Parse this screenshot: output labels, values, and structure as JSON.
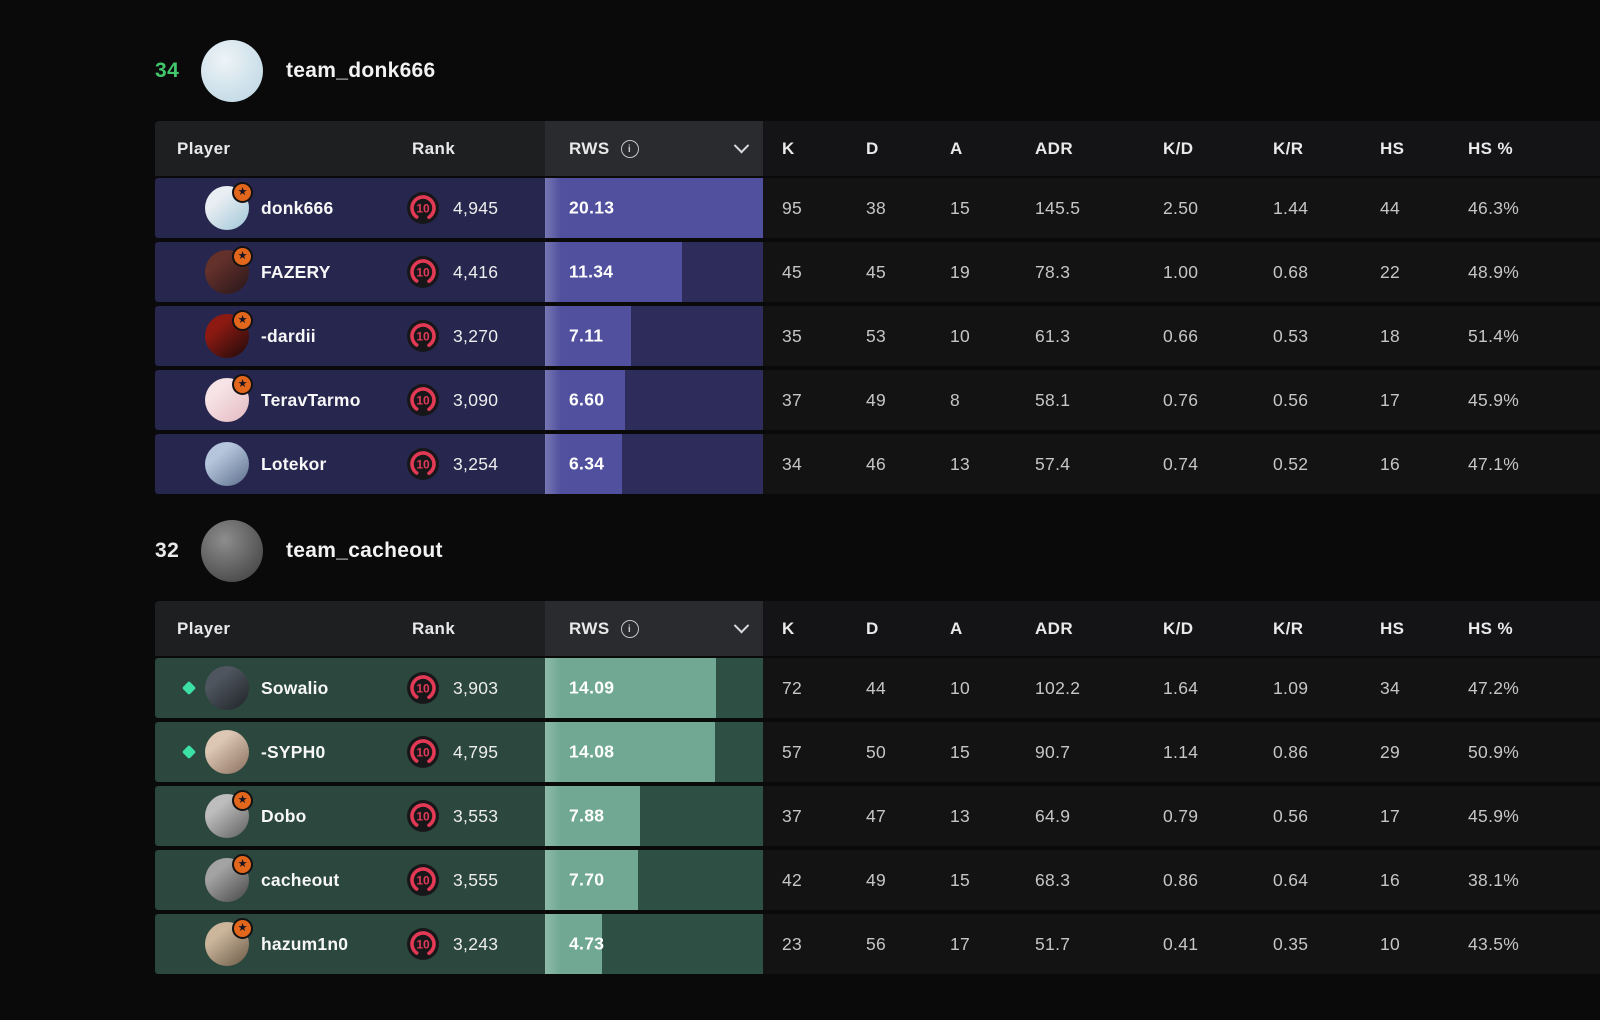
{
  "rws_scale_max": 18,
  "columns": {
    "player": "Player",
    "rank": "Rank",
    "rws": "RWS",
    "rws_info_icon": "info-icon",
    "rws_sort_icon": "chevron-down-icon",
    "stats": [
      "K",
      "D",
      "A",
      "ADR",
      "K/D",
      "K/R",
      "HS",
      "HS %"
    ]
  },
  "theme": {
    "page_bg": "#0a0a0b",
    "header_left_bg": "#1e1f21",
    "header_rws_bg": "#2a2b2e",
    "header_right_bg": "#141416",
    "stat_cell_bg": "#131314",
    "rank_accent": "#e23a55",
    "star_badge_color": "#e2661c",
    "diamond_color": "#3ce0a4",
    "winner_score_color": "#42c76d"
  },
  "teams": [
    {
      "score": "34",
      "score_color": "#42c76d",
      "name": "team_donk666",
      "avatar": {
        "c1": "#eef4f7",
        "c2": "#b9d4e2"
      },
      "colors": {
        "row_bg": "#27264e",
        "rws_rest_bg": "#2d2c5a",
        "rws_bar": "#50509e"
      },
      "players": [
        {
          "name": "donk666",
          "diamond": false,
          "star": true,
          "rank_level": "10",
          "rank_rating": "4,945",
          "rws": "20.13",
          "stats": [
            "95",
            "38",
            "15",
            "145.5",
            "2.50",
            "1.44",
            "44",
            "46.3%"
          ],
          "avatar": {
            "c1": "#e9eef2",
            "c2": "#9fc6d8"
          }
        },
        {
          "name": "FAZERY",
          "diamond": false,
          "star": true,
          "rank_level": "10",
          "rank_rating": "4,416",
          "rws": "11.34",
          "stats": [
            "45",
            "45",
            "19",
            "78.3",
            "1.00",
            "0.68",
            "22",
            "48.9%"
          ],
          "avatar": {
            "c1": "#63302a",
            "c2": "#27161a"
          }
        },
        {
          "name": "-dardii",
          "diamond": false,
          "star": true,
          "rank_level": "10",
          "rank_rating": "3,270",
          "rws": "7.11",
          "stats": [
            "35",
            "53",
            "10",
            "61.3",
            "0.66",
            "0.53",
            "18",
            "51.4%"
          ],
          "avatar": {
            "c1": "#8c1a12",
            "c2": "#1c0a0a"
          }
        },
        {
          "name": "TeravTarmo",
          "diamond": false,
          "star": true,
          "rank_level": "10",
          "rank_rating": "3,090",
          "rws": "6.60",
          "stats": [
            "37",
            "49",
            "8",
            "58.1",
            "0.76",
            "0.56",
            "17",
            "45.9%"
          ],
          "avatar": {
            "c1": "#f6e3e6",
            "c2": "#e3b9c0"
          }
        },
        {
          "name": "Lotekor",
          "diamond": false,
          "star": false,
          "rank_level": "10",
          "rank_rating": "3,254",
          "rws": "6.34",
          "stats": [
            "34",
            "46",
            "13",
            "57.4",
            "0.74",
            "0.52",
            "16",
            "47.1%"
          ],
          "avatar": {
            "c1": "#b5c6dc",
            "c2": "#5d6e8c"
          }
        }
      ]
    },
    {
      "score": "32",
      "score_color": "#e9e9e9",
      "name": "team_cacheout",
      "avatar": {
        "c1": "#8d8d8d",
        "c2": "#3a3a3a"
      },
      "colors": {
        "row_bg": "#2b473e",
        "rws_rest_bg": "#2d4f44",
        "rws_bar": "#70a893"
      },
      "players": [
        {
          "name": "Sowalio",
          "diamond": true,
          "star": false,
          "rank_level": "10",
          "rank_rating": "3,903",
          "rws": "14.09",
          "stats": [
            "72",
            "44",
            "10",
            "102.2",
            "1.64",
            "1.09",
            "34",
            "47.2%"
          ],
          "avatar": {
            "c1": "#4e555e",
            "c2": "#1f2328"
          }
        },
        {
          "name": "-SYPH0",
          "diamond": true,
          "star": false,
          "rank_level": "10",
          "rank_rating": "4,795",
          "rws": "14.08",
          "stats": [
            "57",
            "50",
            "15",
            "90.7",
            "1.14",
            "0.86",
            "29",
            "50.9%"
          ],
          "avatar": {
            "c1": "#dcc6b4",
            "c2": "#8a6f5e"
          }
        },
        {
          "name": "Dobo",
          "diamond": false,
          "star": true,
          "rank_level": "10",
          "rank_rating": "3,553",
          "rws": "7.88",
          "stats": [
            "37",
            "47",
            "13",
            "64.9",
            "0.79",
            "0.56",
            "17",
            "45.9%"
          ],
          "avatar": {
            "c1": "#bdbdbd",
            "c2": "#5f5f5f"
          }
        },
        {
          "name": "cacheout",
          "diamond": false,
          "star": true,
          "rank_level": "10",
          "rank_rating": "3,555",
          "rws": "7.70",
          "stats": [
            "42",
            "49",
            "15",
            "68.3",
            "0.86",
            "0.64",
            "16",
            "38.1%"
          ],
          "avatar": {
            "c1": "#a3a3a3",
            "c2": "#474747"
          }
        },
        {
          "name": "hazum1n0",
          "diamond": false,
          "star": true,
          "rank_level": "10",
          "rank_rating": "3,243",
          "rws": "4.73",
          "stats": [
            "23",
            "56",
            "17",
            "51.7",
            "0.41",
            "0.35",
            "10",
            "43.5%"
          ],
          "avatar": {
            "c1": "#cbb69c",
            "c2": "#6b5946"
          }
        }
      ]
    }
  ]
}
